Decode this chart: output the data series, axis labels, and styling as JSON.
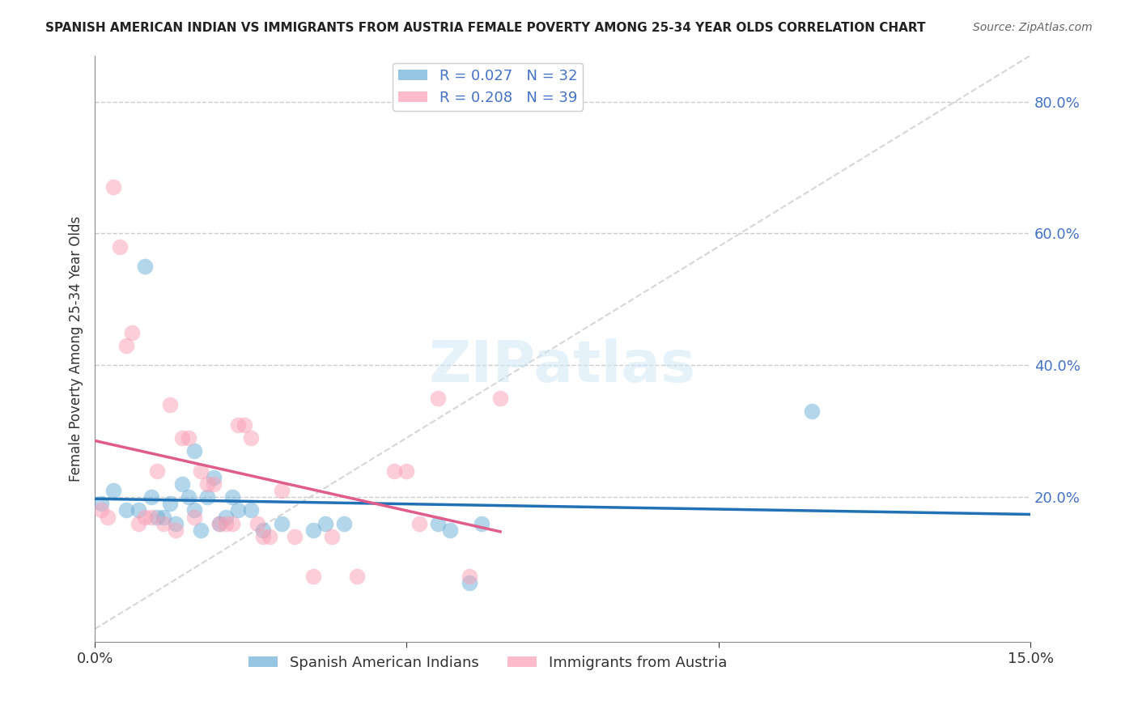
{
  "title": "SPANISH AMERICAN INDIAN VS IMMIGRANTS FROM AUSTRIA FEMALE POVERTY AMONG 25-34 YEAR OLDS CORRELATION CHART",
  "source": "Source: ZipAtlas.com",
  "xlabel": "",
  "ylabel": "Female Poverty Among 25-34 Year Olds",
  "xlim": [
    0.0,
    0.15
  ],
  "ylim": [
    -0.02,
    0.87
  ],
  "xticks": [
    0.0,
    0.05,
    0.1,
    0.15
  ],
  "xticklabels": [
    "0.0%",
    "",
    "",
    "15.0%"
  ],
  "yticks_right": [
    0.2,
    0.4,
    0.6,
    0.8
  ],
  "ytick_right_labels": [
    "20.0%",
    "40.0%",
    "60.0%",
    "80.0%"
  ],
  "watermark": "ZIPatlas",
  "legend1_r": "0.027",
  "legend1_n": "32",
  "legend2_r": "0.208",
  "legend2_n": "39",
  "blue_color": "#6baed6",
  "pink_color": "#fa9fb5",
  "blue_line_color": "#2171b5",
  "pink_line_color": "#e05c8a",
  "diag_line_color": "#cccccc",
  "scatter1_x": [
    0.003,
    0.005,
    0.007,
    0.008,
    0.009,
    0.01,
    0.011,
    0.012,
    0.013,
    0.014,
    0.015,
    0.016,
    0.016,
    0.017,
    0.018,
    0.019,
    0.02,
    0.021,
    0.022,
    0.023,
    0.025,
    0.027,
    0.03,
    0.035,
    0.037,
    0.04,
    0.055,
    0.057,
    0.06,
    0.062,
    0.115,
    0.001
  ],
  "scatter1_y": [
    0.21,
    0.18,
    0.18,
    0.55,
    0.2,
    0.17,
    0.17,
    0.19,
    0.16,
    0.22,
    0.2,
    0.18,
    0.27,
    0.15,
    0.2,
    0.23,
    0.16,
    0.17,
    0.2,
    0.18,
    0.18,
    0.15,
    0.16,
    0.15,
    0.16,
    0.16,
    0.16,
    0.15,
    0.07,
    0.16,
    0.33,
    0.19
  ],
  "scatter2_x": [
    0.001,
    0.002,
    0.003,
    0.004,
    0.005,
    0.006,
    0.007,
    0.008,
    0.009,
    0.01,
    0.011,
    0.012,
    0.013,
    0.014,
    0.015,
    0.016,
    0.017,
    0.018,
    0.019,
    0.02,
    0.021,
    0.022,
    0.023,
    0.024,
    0.025,
    0.026,
    0.027,
    0.028,
    0.03,
    0.032,
    0.035,
    0.038,
    0.042,
    0.048,
    0.05,
    0.052,
    0.055,
    0.06,
    0.065
  ],
  "scatter2_y": [
    0.18,
    0.17,
    0.67,
    0.58,
    0.43,
    0.45,
    0.16,
    0.17,
    0.17,
    0.24,
    0.16,
    0.34,
    0.15,
    0.29,
    0.29,
    0.17,
    0.24,
    0.22,
    0.22,
    0.16,
    0.16,
    0.16,
    0.31,
    0.31,
    0.29,
    0.16,
    0.14,
    0.14,
    0.21,
    0.14,
    0.08,
    0.14,
    0.08,
    0.24,
    0.24,
    0.16,
    0.35,
    0.08,
    0.35
  ]
}
